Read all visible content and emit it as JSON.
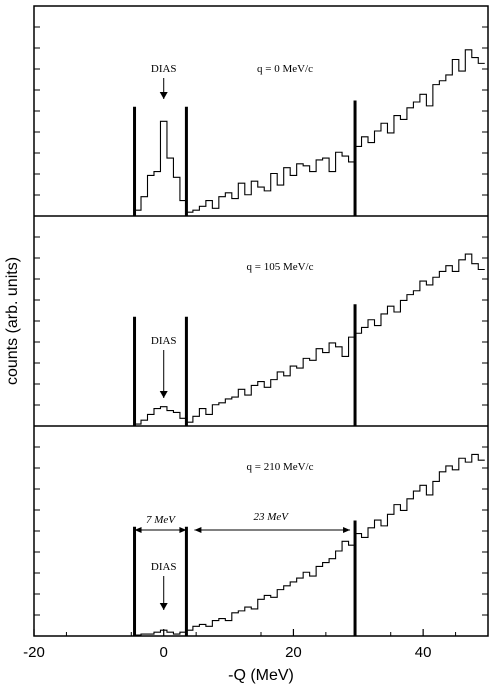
{
  "chart_data": {
    "type": "line",
    "xlabel": "-Q (MeV)",
    "ylabel": "counts (arb. units)",
    "xlim": [
      -20,
      50
    ],
    "xticks": [
      -20,
      0,
      20,
      40
    ],
    "grid": false,
    "step_style": "histogram",
    "vertical_marker_lines": [
      -4.5,
      3.5,
      29.5
    ],
    "panels": [
      {
        "label": "q = 0 MeV/c",
        "annotations": [
          "DIAS"
        ],
        "series": [
          {
            "x": [
              -4,
              -3,
              -2,
              -1,
              0,
              1,
              2,
              3,
              4,
              5,
              6,
              7,
              8,
              9,
              10,
              11,
              12,
              13,
              14,
              15,
              16,
              17,
              18,
              19,
              20,
              21,
              22,
              23,
              24,
              25,
              26,
              27,
              28,
              29,
              30,
              31,
              32,
              33,
              34,
              35,
              36,
              37,
              38,
              39,
              40,
              41,
              42,
              43,
              44,
              45,
              46,
              47,
              48,
              49
            ],
            "values": [
              0.3,
              1.0,
              2.1,
              2.3,
              4.9,
              3.0,
              2.0,
              0.8,
              0.2,
              0.3,
              0.5,
              0.8,
              0.4,
              1.0,
              1.2,
              0.9,
              1.7,
              1.1,
              1.8,
              1.5,
              1.3,
              2.2,
              1.6,
              2.5,
              2.1,
              2.7,
              2.6,
              2.3,
              2.9,
              3.0,
              2.3,
              3.3,
              3.1,
              2.8,
              3.6,
              4.1,
              3.8,
              4.4,
              4.8,
              4.3,
              5.2,
              5.0,
              5.6,
              5.9,
              6.3,
              5.7,
              6.8,
              7.0,
              7.3,
              8.1,
              7.5,
              8.6,
              8.2,
              7.9
            ]
          }
        ]
      },
      {
        "label": "q = 105 MeV/c",
        "annotations": [
          "DIAS"
        ],
        "series": [
          {
            "x": [
              -4,
              -3,
              -2,
              -1,
              0,
              1,
              2,
              3,
              4,
              5,
              6,
              7,
              8,
              9,
              10,
              11,
              12,
              13,
              14,
              15,
              16,
              17,
              18,
              19,
              20,
              21,
              22,
              23,
              24,
              25,
              26,
              27,
              28,
              29,
              30,
              31,
              32,
              33,
              34,
              35,
              36,
              37,
              38,
              39,
              40,
              41,
              42,
              43,
              44,
              45,
              46,
              47,
              48,
              49
            ],
            "values": [
              0.1,
              0.3,
              0.6,
              0.9,
              1.0,
              0.8,
              0.7,
              0.4,
              0.2,
              0.5,
              0.9,
              0.6,
              1.1,
              1.2,
              1.4,
              1.5,
              1.9,
              1.6,
              2.1,
              2.3,
              2.0,
              2.4,
              2.8,
              2.6,
              3.1,
              3.0,
              3.5,
              3.4,
              4.0,
              3.8,
              4.3,
              4.1,
              3.6,
              4.6,
              4.8,
              5.1,
              5.5,
              5.2,
              5.8,
              6.2,
              5.9,
              6.5,
              6.8,
              7.0,
              7.5,
              7.3,
              7.7,
              8.0,
              8.3,
              8.0,
              8.6,
              8.9,
              8.4,
              8.1
            ]
          }
        ]
      },
      {
        "label": "q = 210 MeV/c",
        "annotations": [
          "DIAS",
          "7 MeV",
          "23 MeV"
        ],
        "series": [
          {
            "x": [
              -4,
              -3,
              -2,
              -1,
              0,
              1,
              2,
              3,
              4,
              5,
              6,
              7,
              8,
              9,
              10,
              11,
              12,
              13,
              14,
              15,
              16,
              17,
              18,
              19,
              20,
              21,
              22,
              23,
              24,
              25,
              26,
              27,
              28,
              29,
              30,
              31,
              32,
              33,
              34,
              35,
              36,
              37,
              38,
              39,
              40,
              41,
              42,
              43,
              44,
              45,
              46,
              47,
              48,
              49
            ],
            "values": [
              0.05,
              0.1,
              0.1,
              0.2,
              0.3,
              0.2,
              0.1,
              0.2,
              0.3,
              0.5,
              0.6,
              0.5,
              0.8,
              0.9,
              0.8,
              1.2,
              1.3,
              1.5,
              1.4,
              1.9,
              2.1,
              2.0,
              2.4,
              2.6,
              2.8,
              3.0,
              3.3,
              3.1,
              3.6,
              3.8,
              4.0,
              4.4,
              4.9,
              4.7,
              5.3,
              5.1,
              5.6,
              6.0,
              5.7,
              6.3,
              6.8,
              6.5,
              7.1,
              7.5,
              7.8,
              7.3,
              8.0,
              8.5,
              8.8,
              8.6,
              9.2,
              9.0,
              9.4,
              9.1
            ]
          }
        ]
      }
    ]
  }
}
